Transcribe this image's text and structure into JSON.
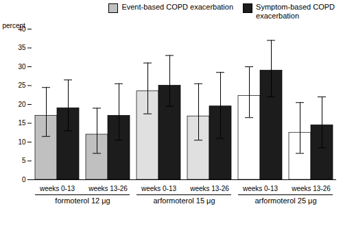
{
  "chart_data": {
    "type": "bar",
    "categories": [
      "weeks 0-13",
      "weeks 13-26",
      "weeks 0-13",
      "weeks 13-26",
      "weeks 0-13",
      "weeks 13-26"
    ],
    "category_groups": [
      "formoterol 12 μg",
      "formoterol 12 μg",
      "arformoterol 15 μg",
      "arformoterol 15 μg",
      "arformoterol 25 μg",
      "arformoterol 25 μg"
    ],
    "series": [
      {
        "name": "Event-based COPD exacerbation",
        "color": "#c0c0c0",
        "colors": [
          "#c0c0c0",
          "#c0c0c0",
          "#e0e0e0",
          "#e0e0e0",
          "#ffffff",
          "#ffffff"
        ],
        "values": [
          17.0,
          12.0,
          23.5,
          16.8,
          22.3,
          12.5
        ],
        "error_low": [
          5.5,
          5.0,
          6.0,
          6.3,
          5.8,
          5.5
        ],
        "error_high": [
          7.5,
          7.0,
          7.5,
          8.7,
          7.7,
          8.0
        ]
      },
      {
        "name": "Symptom-based COPD\nexacerbation",
        "color": "#1c1c1c",
        "values": [
          19.0,
          17.0,
          25.0,
          19.5,
          29.0,
          14.5
        ],
        "error_low": [
          6.0,
          6.5,
          5.5,
          8.5,
          7.0,
          6.0
        ],
        "error_high": [
          7.5,
          8.5,
          8.0,
          9.0,
          8.0,
          7.5
        ]
      }
    ],
    "ylabel": "percent",
    "ylim": [
      0,
      40
    ],
    "yticks": [
      0,
      5,
      10,
      15,
      20,
      25,
      30,
      35,
      40
    ],
    "legend": "upper right",
    "grid": false
  }
}
